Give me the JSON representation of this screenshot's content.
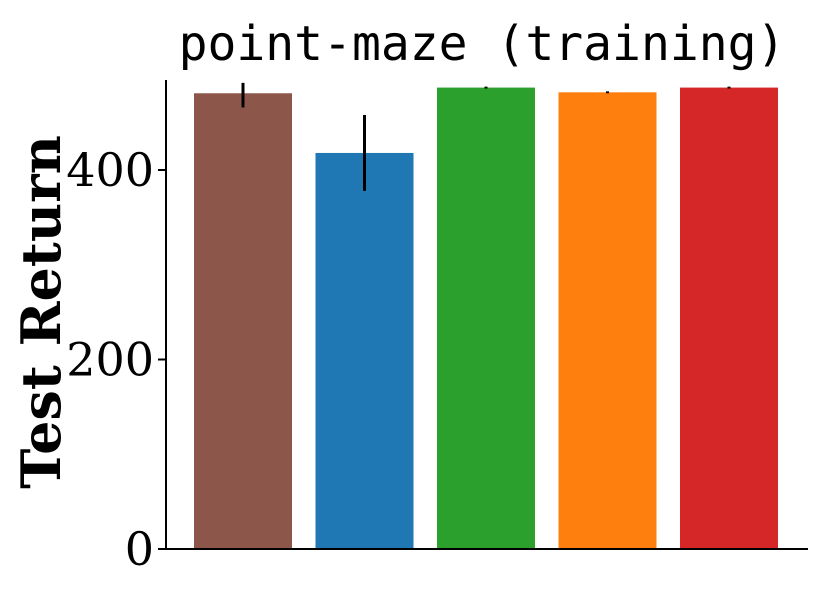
{
  "chart_data": {
    "type": "bar",
    "title": "point-maze (training)",
    "xlabel": "",
    "ylabel": "Test Return",
    "ylim": [
      0,
      495
    ],
    "yticks": [
      0,
      200,
      400
    ],
    "grid": false,
    "legend": "none",
    "categories": [
      "",
      "",
      "",
      "",
      ""
    ],
    "values": [
      481,
      418,
      487,
      482,
      487
    ],
    "errors": [
      [
        466,
        492
      ],
      [
        378,
        458
      ],
      [
        486,
        488
      ],
      [
        481,
        483
      ],
      [
        486,
        488
      ]
    ],
    "colors": [
      "#8c564b",
      "#1f77b4",
      "#2ca02c",
      "#ff7f0e",
      "#d62728"
    ]
  }
}
